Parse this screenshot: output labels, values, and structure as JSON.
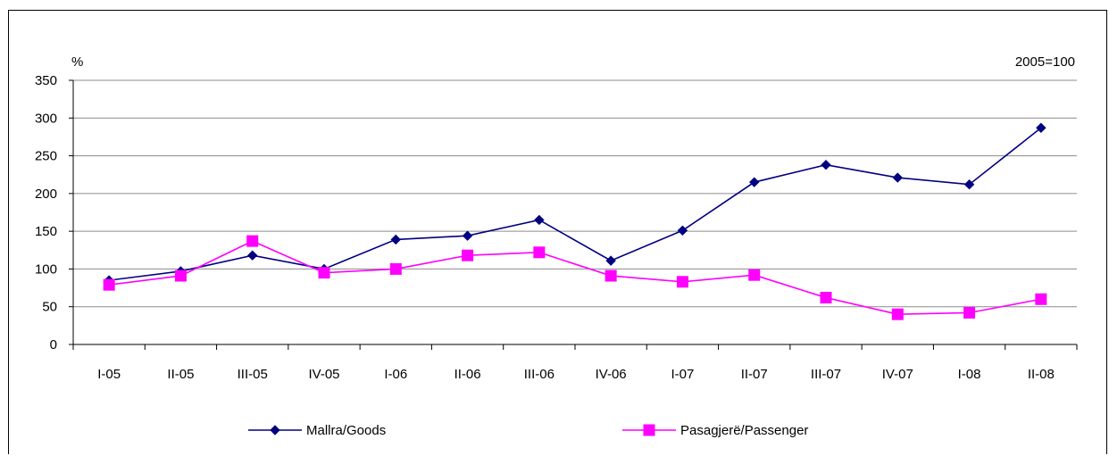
{
  "chart_data": {
    "type": "line",
    "y_unit_label": "%",
    "base_note": "2005=100",
    "categories": [
      "I-05",
      "II-05",
      "III-05",
      "IV-05",
      "I-06",
      "II-06",
      "III-06",
      "IV-06",
      "I-07",
      "II-07",
      "III-07",
      "IV-07",
      "I-08",
      "II-08"
    ],
    "ylim": [
      0,
      350
    ],
    "yticks": [
      0,
      50,
      100,
      150,
      200,
      250,
      300,
      350
    ],
    "grid": true,
    "legend_position": "bottom",
    "series": [
      {
        "name": "Mallra/Goods",
        "color": "#000080",
        "marker": "diamond",
        "values": [
          85,
          97,
          118,
          100,
          139,
          144,
          165,
          111,
          151,
          215,
          238,
          221,
          212,
          287
        ]
      },
      {
        "name": "Pasagjerë/Passenger",
        "color": "#ff00ff",
        "marker": "square",
        "values": [
          79,
          91,
          137,
          95,
          100,
          118,
          122,
          91,
          83,
          92,
          62,
          40,
          42,
          60
        ]
      }
    ]
  }
}
